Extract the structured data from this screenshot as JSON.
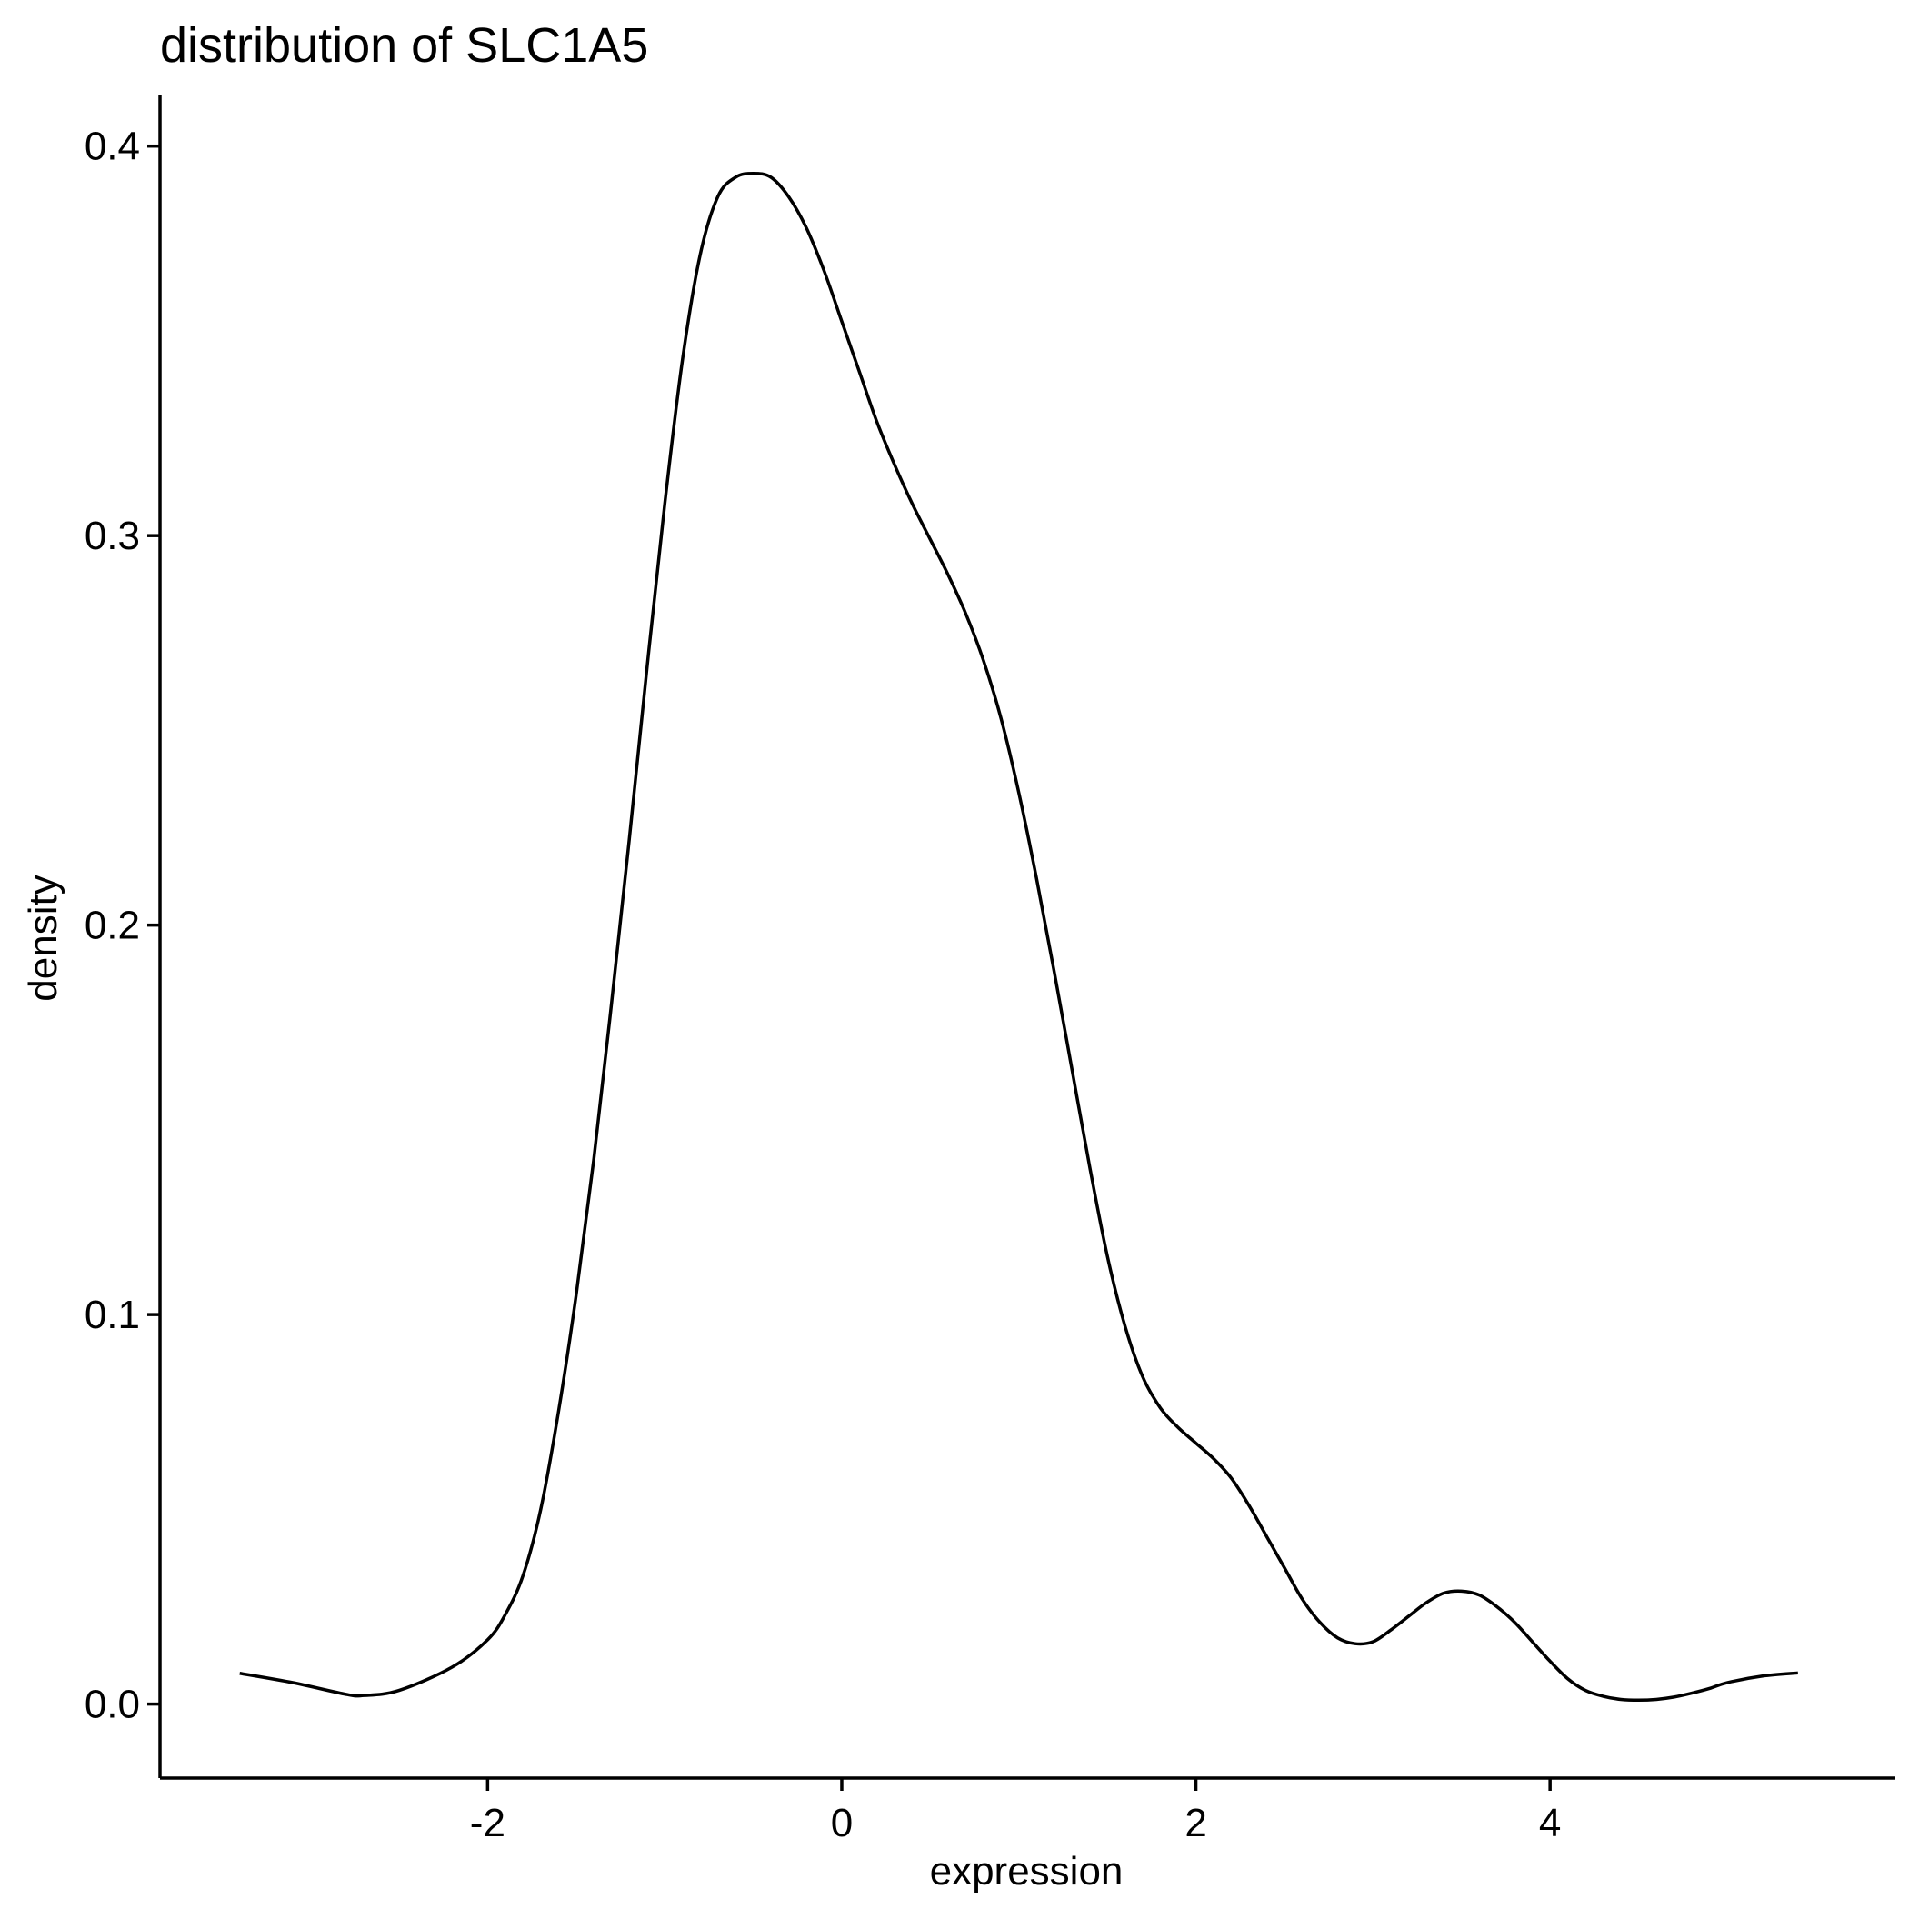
{
  "chart_data": {
    "type": "line",
    "title": "distribution of SLC1A5",
    "xlabel": "expression",
    "ylabel": "density",
    "xlim": [
      -3.85,
      5.95
    ],
    "ylim": [
      -0.019,
      0.413
    ],
    "x_ticks": [
      -2,
      0,
      2,
      4
    ],
    "x_tick_labels": [
      "-2",
      "0",
      "2",
      "4"
    ],
    "y_ticks": [
      0.0,
      0.1,
      0.2,
      0.3,
      0.4
    ],
    "y_tick_labels": [
      "0.0",
      "0.1",
      "0.2",
      "0.3",
      "0.4"
    ],
    "grid": false,
    "line_color": "#000000",
    "series": [
      {
        "x": [
          -3.4,
          -3.1,
          -2.8,
          -2.7,
          -2.5,
          -2.2,
          -2.0,
          -1.9,
          -1.8,
          -1.7,
          -1.6,
          -1.5,
          -1.4,
          -1.3,
          -1.2,
          -1.1,
          -1.0,
          -0.9,
          -0.8,
          -0.7,
          -0.6,
          -0.5,
          -0.4,
          -0.3,
          -0.2,
          -0.1,
          0.0,
          0.1,
          0.2,
          0.3,
          0.4,
          0.5,
          0.6,
          0.7,
          0.8,
          0.9,
          1.0,
          1.1,
          1.2,
          1.3,
          1.4,
          1.5,
          1.6,
          1.7,
          1.8,
          1.9,
          2.0,
          2.1,
          2.2,
          2.3,
          2.4,
          2.5,
          2.6,
          2.7,
          2.8,
          2.9,
          3.0,
          3.1,
          3.2,
          3.3,
          3.4,
          3.5,
          3.6,
          3.7,
          3.8,
          3.9,
          4.0,
          4.1,
          4.2,
          4.3,
          4.4,
          4.5,
          4.6,
          4.7,
          4.8,
          4.9,
          5.0,
          5.2,
          5.4
        ],
        "y": [
          0.0079,
          0.0055,
          0.0025,
          0.0022,
          0.0035,
          0.0095,
          0.0165,
          0.023,
          0.033,
          0.05,
          0.075,
          0.105,
          0.14,
          0.18,
          0.222,
          0.266,
          0.308,
          0.345,
          0.372,
          0.387,
          0.392,
          0.393,
          0.392,
          0.387,
          0.379,
          0.368,
          0.355,
          0.342,
          0.329,
          0.318,
          0.308,
          0.299,
          0.29,
          0.28,
          0.268,
          0.253,
          0.234,
          0.212,
          0.188,
          0.163,
          0.138,
          0.115,
          0.097,
          0.084,
          0.076,
          0.071,
          0.067,
          0.063,
          0.058,
          0.051,
          0.043,
          0.035,
          0.027,
          0.021,
          0.017,
          0.0155,
          0.016,
          0.019,
          0.0225,
          0.026,
          0.0285,
          0.029,
          0.028,
          0.025,
          0.021,
          0.016,
          0.011,
          0.0065,
          0.0035,
          0.002,
          0.0012,
          0.001,
          0.0012,
          0.0018,
          0.0028,
          0.004,
          0.0055,
          0.0072,
          0.008
        ]
      }
    ]
  }
}
